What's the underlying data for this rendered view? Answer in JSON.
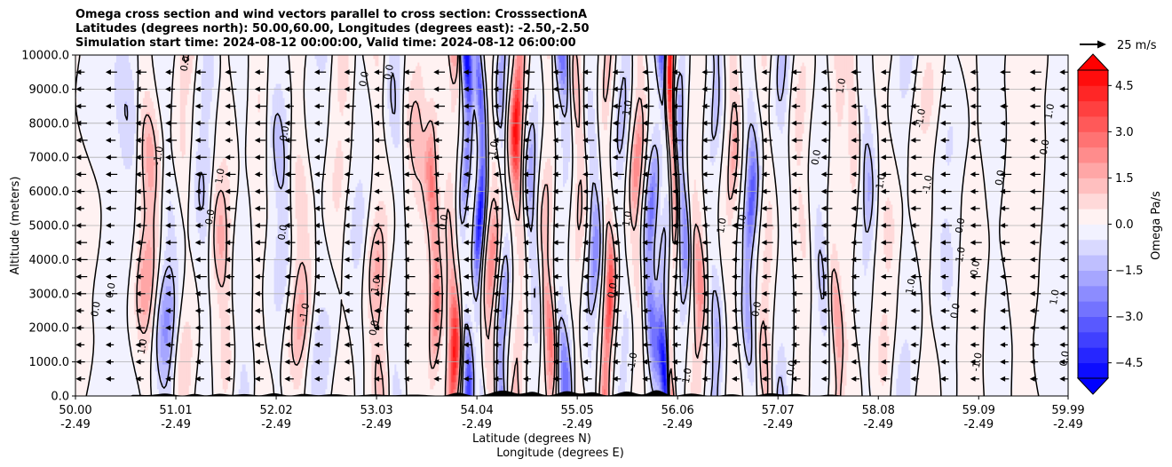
{
  "chart_data": {
    "type": "heatmap",
    "title_lines": [
      "Omega cross section and wind vectors parallel to cross section: CrosssectionA",
      "Latitudes (degrees north): 50.00,60.00, Longitudes (degrees east): -2.50,-2.50",
      "Simulation start time: 2024-08-12 00:00:00, Valid time: 2024-08-12 06:00:00"
    ],
    "xlabel_lat": "Latitude (degrees N)",
    "xlabel_lon": "Longitude (degrees E)",
    "ylabel": "Altitude (meters)",
    "x_range": [
      50.0,
      59.99
    ],
    "ylim": [
      0,
      10000
    ],
    "x_ticks": [
      {
        "lat": "50.00",
        "lon": "-2.49",
        "value": 50.0
      },
      {
        "lat": "51.01",
        "lon": "-2.49",
        "value": 51.01
      },
      {
        "lat": "52.02",
        "lon": "-2.49",
        "value": 52.02
      },
      {
        "lat": "53.03",
        "lon": "-2.49",
        "value": 53.03
      },
      {
        "lat": "54.04",
        "lon": "-2.49",
        "value": 54.04
      },
      {
        "lat": "55.05",
        "lon": "-2.49",
        "value": 55.05
      },
      {
        "lat": "56.06",
        "lon": "-2.49",
        "value": 56.06
      },
      {
        "lat": "57.07",
        "lon": "-2.49",
        "value": 57.07
      },
      {
        "lat": "58.08",
        "lon": "-2.49",
        "value": 58.08
      },
      {
        "lat": "59.09",
        "lon": "-2.49",
        "value": 59.09
      },
      {
        "lat": "59.99",
        "lon": "-2.49",
        "value": 59.99
      }
    ],
    "y_ticks": [
      {
        "label": "10000.0",
        "value": 10000
      },
      {
        "label": "9000.0",
        "value": 9000
      },
      {
        "label": "8000.0",
        "value": 8000
      },
      {
        "label": "7000.0",
        "value": 7000
      },
      {
        "label": "6000.0",
        "value": 6000
      },
      {
        "label": "5000.0",
        "value": 5000
      },
      {
        "label": "4000.0",
        "value": 4000
      },
      {
        "label": "3000.0",
        "value": 3000
      },
      {
        "label": "2000.0",
        "value": 2000
      },
      {
        "label": "1000.0",
        "value": 1000
      },
      {
        "label": "0.0",
        "value": 0
      }
    ],
    "grid": "horizontal",
    "colorbar": {
      "label": "Omega Pa/s",
      "min": -5.0,
      "max": 5.0,
      "levels": 20,
      "extend": "both",
      "ticks": [
        {
          "label": "4.5",
          "value": 4.5
        },
        {
          "label": "3.0",
          "value": 3.0
        },
        {
          "label": "1.5",
          "value": 1.5
        },
        {
          "label": "0.0",
          "value": 0.0
        },
        {
          "label": "−1.5",
          "value": -1.5
        },
        {
          "label": "−3.0",
          "value": -3.0
        },
        {
          "label": "−4.5",
          "value": -4.5
        }
      ]
    },
    "quiver_key": {
      "label": "25 m/s",
      "speed": 25
    },
    "contour_levels": [
      -1.0,
      0.0,
      1.0
    ],
    "contour_labels": [
      {
        "text": "0.0",
        "x": 50.2,
        "y": 2550
      },
      {
        "text": "0.0",
        "x": 50.35,
        "y": 3100
      },
      {
        "text": "1.0",
        "x": 50.67,
        "y": 1450
      },
      {
        "text": "0.0",
        "x": 51.1,
        "y": 9750
      },
      {
        "text": "-1.0",
        "x": 50.83,
        "y": 7050
      },
      {
        "text": "0.0",
        "x": 51.35,
        "y": 5250
      },
      {
        "text": "1.0",
        "x": 51.45,
        "y": 6450
      },
      {
        "text": "0.0",
        "x": 52.1,
        "y": 7700
      },
      {
        "text": "0.0",
        "x": 52.08,
        "y": 4800
      },
      {
        "text": "-1.0",
        "x": 52.3,
        "y": 2450
      },
      {
        "text": "0.0",
        "x": 52.9,
        "y": 9300
      },
      {
        "text": "0.0",
        "x": 53.0,
        "y": 2000
      },
      {
        "text": "1.0",
        "x": 53.02,
        "y": 3250
      },
      {
        "text": "0.0",
        "x": 53.15,
        "y": 9500
      },
      {
        "text": "0.0",
        "x": 53.7,
        "y": 5100
      },
      {
        "text": "-1.0",
        "x": 54.2,
        "y": 7200
      },
      {
        "text": "0.0",
        "x": 55.4,
        "y": 3100
      },
      {
        "text": "1.0",
        "x": 55.55,
        "y": 5200
      },
      {
        "text": "1.0",
        "x": 55.55,
        "y": 8450
      },
      {
        "text": "1.0",
        "x": 56.5,
        "y": 5000
      },
      {
        "text": "0.0",
        "x": 56.7,
        "y": 5100
      },
      {
        "text": "0.0",
        "x": 56.85,
        "y": 2550
      },
      {
        "text": "1.0",
        "x": 57.7,
        "y": 9100
      },
      {
        "text": "0.0",
        "x": 57.45,
        "y": 7000
      },
      {
        "text": "1.0",
        "x": 58.1,
        "y": 6300
      },
      {
        "text": "-1.0",
        "x": 58.5,
        "y": 8150
      },
      {
        "text": "-1.0",
        "x": 58.57,
        "y": 6200
      },
      {
        "text": "1.0",
        "x": 58.4,
        "y": 3220
      },
      {
        "text": "-1.0",
        "x": 58.9,
        "y": 4100
      },
      {
        "text": "0.0",
        "x": 59.05,
        "y": 3750
      },
      {
        "text": "0.0",
        "x": 58.9,
        "y": 5000
      },
      {
        "text": "0.0",
        "x": 58.85,
        "y": 2500
      },
      {
        "text": "0.0",
        "x": 59.3,
        "y": 6400
      },
      {
        "text": "1.0",
        "x": 59.85,
        "y": 2900
      },
      {
        "text": "-1.0",
        "x": 59.07,
        "y": 1000
      },
      {
        "text": "0.0",
        "x": 59.75,
        "y": 7300
      },
      {
        "text": "1.0",
        "x": 59.8,
        "y": 8350
      },
      {
        "text": "0.0",
        "x": 57.2,
        "y": 820
      },
      {
        "text": "1.0",
        "x": 56.15,
        "y": 600
      },
      {
        "text": "-1.0",
        "x": 55.6,
        "y": 1000
      },
      {
        "text": "0.0",
        "x": 59.95,
        "y": 1100
      }
    ]
  }
}
